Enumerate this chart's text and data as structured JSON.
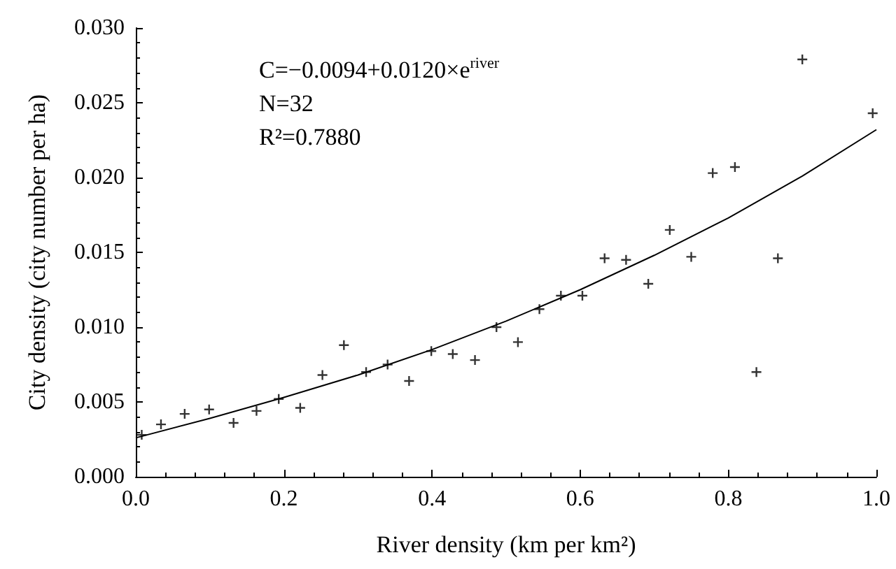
{
  "chart_data": {
    "type": "scatter",
    "xlabel": "River density (km per km²)",
    "ylabel": "City density (city number per ha)",
    "annotations": [
      "C=−0.0094+0.0120×e$^{river}$",
      "N=32",
      "R²=0.7880"
    ],
    "marker": "cross",
    "grid": false,
    "xlim": [
      0,
      1.0
    ],
    "xticks": [
      {
        "value": 0,
        "label": "0.0"
      },
      {
        "value": 0.2,
        "label": "0.2"
      },
      {
        "value": 0.4,
        "label": "0.4"
      },
      {
        "value": 0.6,
        "label": "0.6"
      },
      {
        "value": 0.8,
        "label": "0.8"
      },
      {
        "value": 1.0,
        "label": "1.0"
      }
    ],
    "ylim": [
      0,
      0.03
    ],
    "yticks": [
      {
        "value": 0,
        "label": "0.000"
      },
      {
        "value": 0.005,
        "label": "0.005"
      },
      {
        "value": 0.01,
        "label": "0.010"
      },
      {
        "value": 0.015,
        "label": "0.015"
      },
      {
        "value": 0.02,
        "label": "0.020"
      },
      {
        "value": 0.025,
        "label": "0.025"
      },
      {
        "value": 0.03,
        "label": "0.030"
      }
    ],
    "series": [
      {
        "color": "#000000",
        "x": [
          0.008,
          0.034,
          0.066,
          0.099,
          0.132,
          0.163,
          0.193,
          0.222,
          0.252,
          0.281,
          0.311,
          0.34,
          0.369,
          0.399,
          0.428,
          0.458,
          0.487,
          0.516,
          0.545,
          0.574,
          0.603,
          0.633,
          0.662,
          0.692,
          0.721,
          0.75,
          0.779,
          0.809,
          0.838,
          0.867,
          0.9,
          0.995
        ],
        "values": [
          0.0028,
          0.0035,
          0.0042,
          0.0045,
          0.0036,
          0.0044,
          0.0052,
          0.0046,
          0.0068,
          0.0088,
          0.007,
          0.0075,
          0.0064,
          0.0084,
          0.0082,
          0.0078,
          0.01,
          0.009,
          0.0112,
          0.0121,
          0.0121,
          0.0146,
          0.0145,
          0.0129,
          0.0165,
          0.0147,
          0.0203,
          0.0207,
          0.007,
          0.0146,
          0.0279,
          0.0243
        ]
      },
      {
        "type": "line",
        "color": "#000000",
        "marker": "none",
        "x": [
          0,
          0.1,
          0.2,
          0.3,
          0.4,
          0.5,
          0.6,
          0.7,
          0.8,
          0.9,
          1.0
        ],
        "values": [
          0.0026,
          0.0039,
          0.0053,
          0.0068,
          0.0085,
          0.0104,
          0.0125,
          0.0148,
          0.0173,
          0.0201,
          0.0232
        ]
      }
    ]
  }
}
